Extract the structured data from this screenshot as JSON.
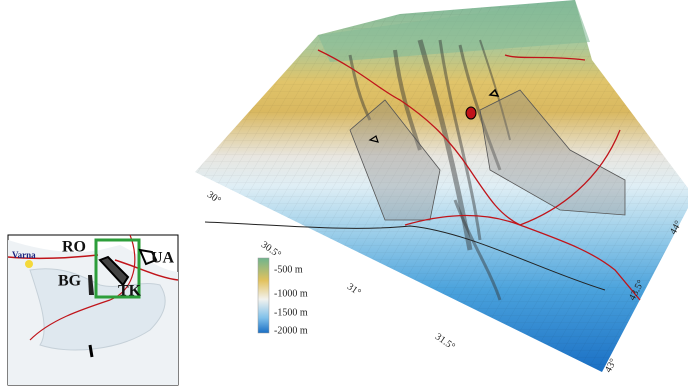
{
  "inset": {
    "labels": {
      "ro": "RO",
      "ua": "UA",
      "bg": "BG",
      "tk": "TK",
      "varna": "Varna"
    }
  },
  "legend": {
    "labels": [
      "-500 m",
      "-1000 m",
      "-1500 m",
      "-2000 m"
    ]
  },
  "axes": {
    "longitude": [
      "30°",
      "30.5°",
      "31°",
      "31.5°"
    ],
    "latitude": [
      "43°",
      "43.5°",
      "44°"
    ]
  }
}
